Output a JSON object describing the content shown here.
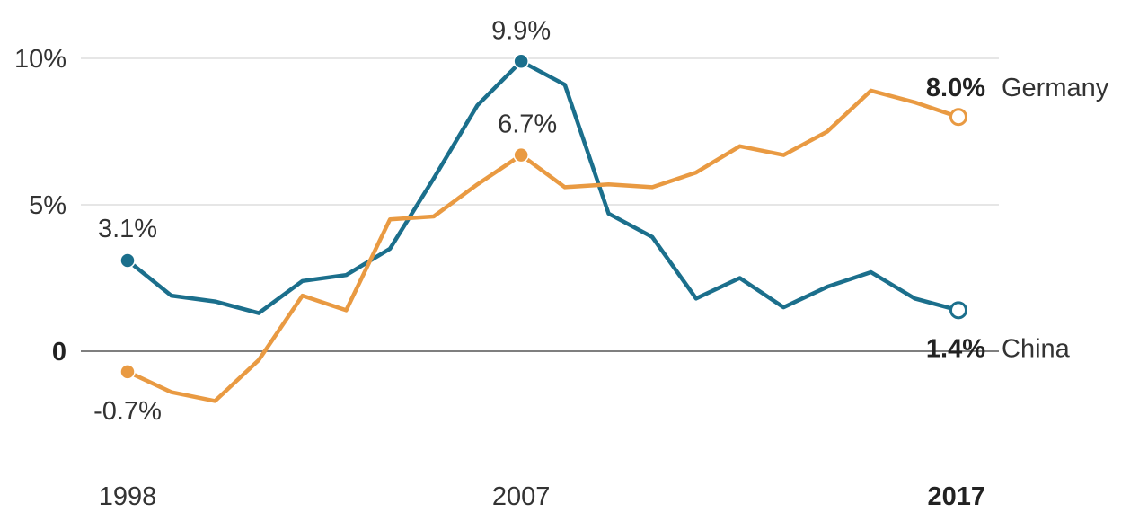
{
  "chart_data": {
    "type": "line",
    "x": [
      1998,
      1999,
      2000,
      2001,
      2002,
      2003,
      2004,
      2005,
      2006,
      2007,
      2008,
      2009,
      2010,
      2011,
      2012,
      2013,
      2014,
      2015,
      2016,
      2017
    ],
    "series": [
      {
        "name": "China",
        "color": "#1b6f8c",
        "values": [
          3.1,
          1.9,
          1.7,
          1.3,
          2.4,
          2.6,
          3.5,
          5.9,
          8.4,
          9.9,
          9.1,
          4.7,
          3.9,
          1.8,
          2.5,
          1.5,
          2.2,
          2.7,
          1.8,
          1.4
        ]
      },
      {
        "name": "Germany",
        "color": "#e99a42",
        "values": [
          -0.7,
          -1.4,
          -1.7,
          -0.3,
          1.9,
          1.4,
          4.5,
          4.6,
          5.7,
          6.7,
          5.6,
          5.7,
          5.6,
          6.1,
          7.0,
          6.7,
          7.5,
          8.9,
          8.5,
          8.0
        ]
      }
    ],
    "y_ticks": [
      {
        "value": 0,
        "label": "0"
      },
      {
        "value": 5,
        "label": "5%"
      },
      {
        "value": 10,
        "label": "10%"
      }
    ],
    "x_ticks": [
      {
        "value": 1998,
        "label": "1998"
      },
      {
        "value": 2007,
        "label": "2007"
      },
      {
        "value": 2017,
        "label": "2017"
      }
    ],
    "annotations": [
      {
        "series": "China",
        "x": 1998,
        "text": "3.1%"
      },
      {
        "series": "China",
        "x": 2007,
        "text": "9.9%"
      },
      {
        "series": "China",
        "x": 2017,
        "text": "1.4%"
      },
      {
        "series": "Germany",
        "x": 1998,
        "text": "-0.7%"
      },
      {
        "series": "Germany",
        "x": 2007,
        "text": "6.7%"
      },
      {
        "series": "Germany",
        "x": 2017,
        "text": "8.0%"
      }
    ],
    "ylim": [
      -3.6,
      11.4
    ],
    "xlim": [
      1998,
      2017
    ],
    "grid": true,
    "title": "",
    "xlabel": "",
    "ylabel": ""
  }
}
